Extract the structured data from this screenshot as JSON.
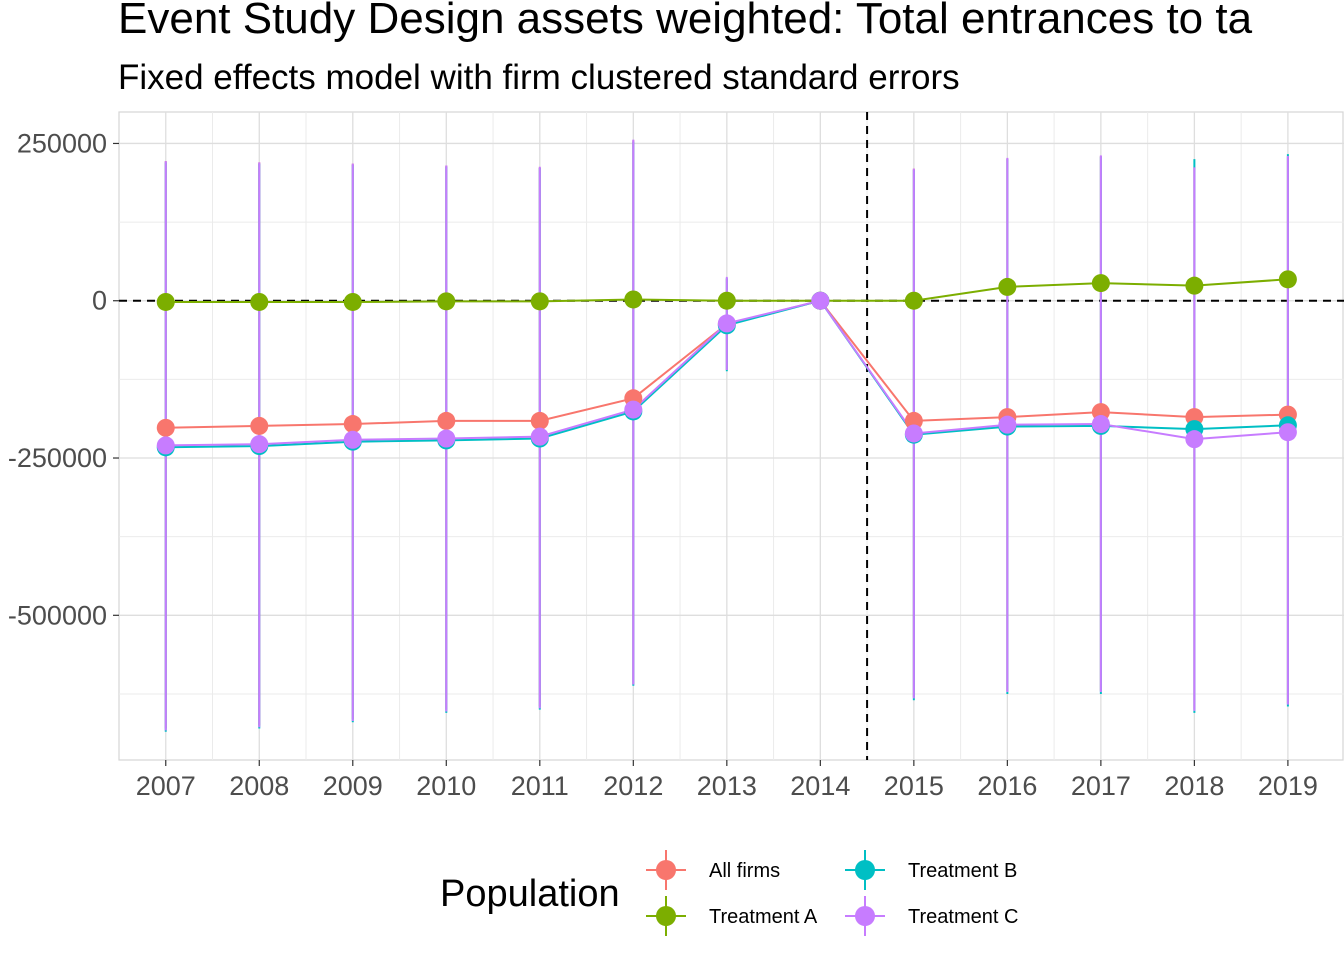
{
  "title": "Event Study Design assets weighted: Total entrances to ta",
  "subtitle": "Fixed effects model with firm clustered standard errors",
  "legend": {
    "title": "Population",
    "placement": "bottom"
  },
  "chart_data": {
    "type": "line",
    "title": "Event Study Design assets weighted: Total entrances to ta",
    "subtitle": "Fixed effects model with firm clustered standard errors",
    "xlabel": "",
    "ylabel": "",
    "x": [
      2007,
      2008,
      2009,
      2010,
      2011,
      2012,
      2013,
      2014,
      2015,
      2016,
      2017,
      2018,
      2019
    ],
    "xlim": [
      2006.5,
      2019.6
    ],
    "ylim": [
      -730000,
      300000
    ],
    "yticks": [
      250000,
      0,
      -250000,
      -500000
    ],
    "ytick_labels": [
      "250000",
      "0",
      "-250000",
      "-500000"
    ],
    "grid": true,
    "reference_lines": {
      "horizontal": 0,
      "vertical": 2014.5,
      "style": "dashed"
    },
    "series": [
      {
        "name": "All firms",
        "color": "#F8766D",
        "values": [
          -202000,
          -199000,
          -196000,
          -191000,
          -191000,
          -155000,
          -37000,
          0,
          -191000,
          -185000,
          -177000,
          -185000,
          -181000
        ],
        "lower": [
          -680000,
          -675000,
          -665000,
          -650000,
          -645000,
          -610000,
          -110000,
          0,
          -630000,
          -620000,
          -620000,
          -650000,
          -640000
        ],
        "upper": [
          222000,
          220000,
          218000,
          215000,
          212000,
          255000,
          35000,
          0,
          210000,
          226000,
          230000,
          212000,
          228000
        ]
      },
      {
        "name": "Treatment A",
        "color": "#7CAE00",
        "values": [
          -2000,
          -2000,
          -2000,
          -1000,
          -1000,
          2000,
          0,
          0,
          0,
          22000,
          28000,
          24000,
          34000
        ],
        "lower": [
          -8000,
          -8000,
          -8000,
          -7000,
          -7000,
          -4000,
          -4000,
          0,
          -5000,
          15000,
          21000,
          17000,
          27000
        ],
        "upper": [
          4000,
          4000,
          4000,
          5000,
          5000,
          8000,
          4000,
          0,
          5000,
          29000,
          35000,
          31000,
          41000
        ]
      },
      {
        "name": "Treatment B",
        "color": "#00BFC4",
        "values": [
          -233000,
          -231000,
          -224000,
          -222000,
          -219000,
          -176000,
          -39000,
          0,
          -213000,
          -200000,
          -199000,
          -204000,
          -198000
        ],
        "lower": [
          -685000,
          -680000,
          -670000,
          -655000,
          -650000,
          -612000,
          -112000,
          0,
          -635000,
          -625000,
          -625000,
          -655000,
          -645000
        ],
        "upper": [
          220000,
          218000,
          216000,
          213000,
          211000,
          253000,
          36000,
          0,
          208000,
          225000,
          229000,
          225000,
          233000
        ]
      },
      {
        "name": "Treatment C",
        "color": "#C77CFF",
        "values": [
          -230000,
          -228000,
          -221000,
          -219000,
          -216000,
          -173000,
          -36000,
          0,
          -211000,
          -197000,
          -196000,
          -220000,
          -209000
        ],
        "lower": [
          -683000,
          -678000,
          -668000,
          -653000,
          -648000,
          -610000,
          -110000,
          0,
          -632000,
          -622000,
          -622000,
          -652000,
          -642000
        ],
        "upper": [
          222000,
          220000,
          218000,
          215000,
          213000,
          256000,
          38000,
          0,
          210000,
          227000,
          231000,
          212000,
          230000
        ]
      }
    ]
  }
}
